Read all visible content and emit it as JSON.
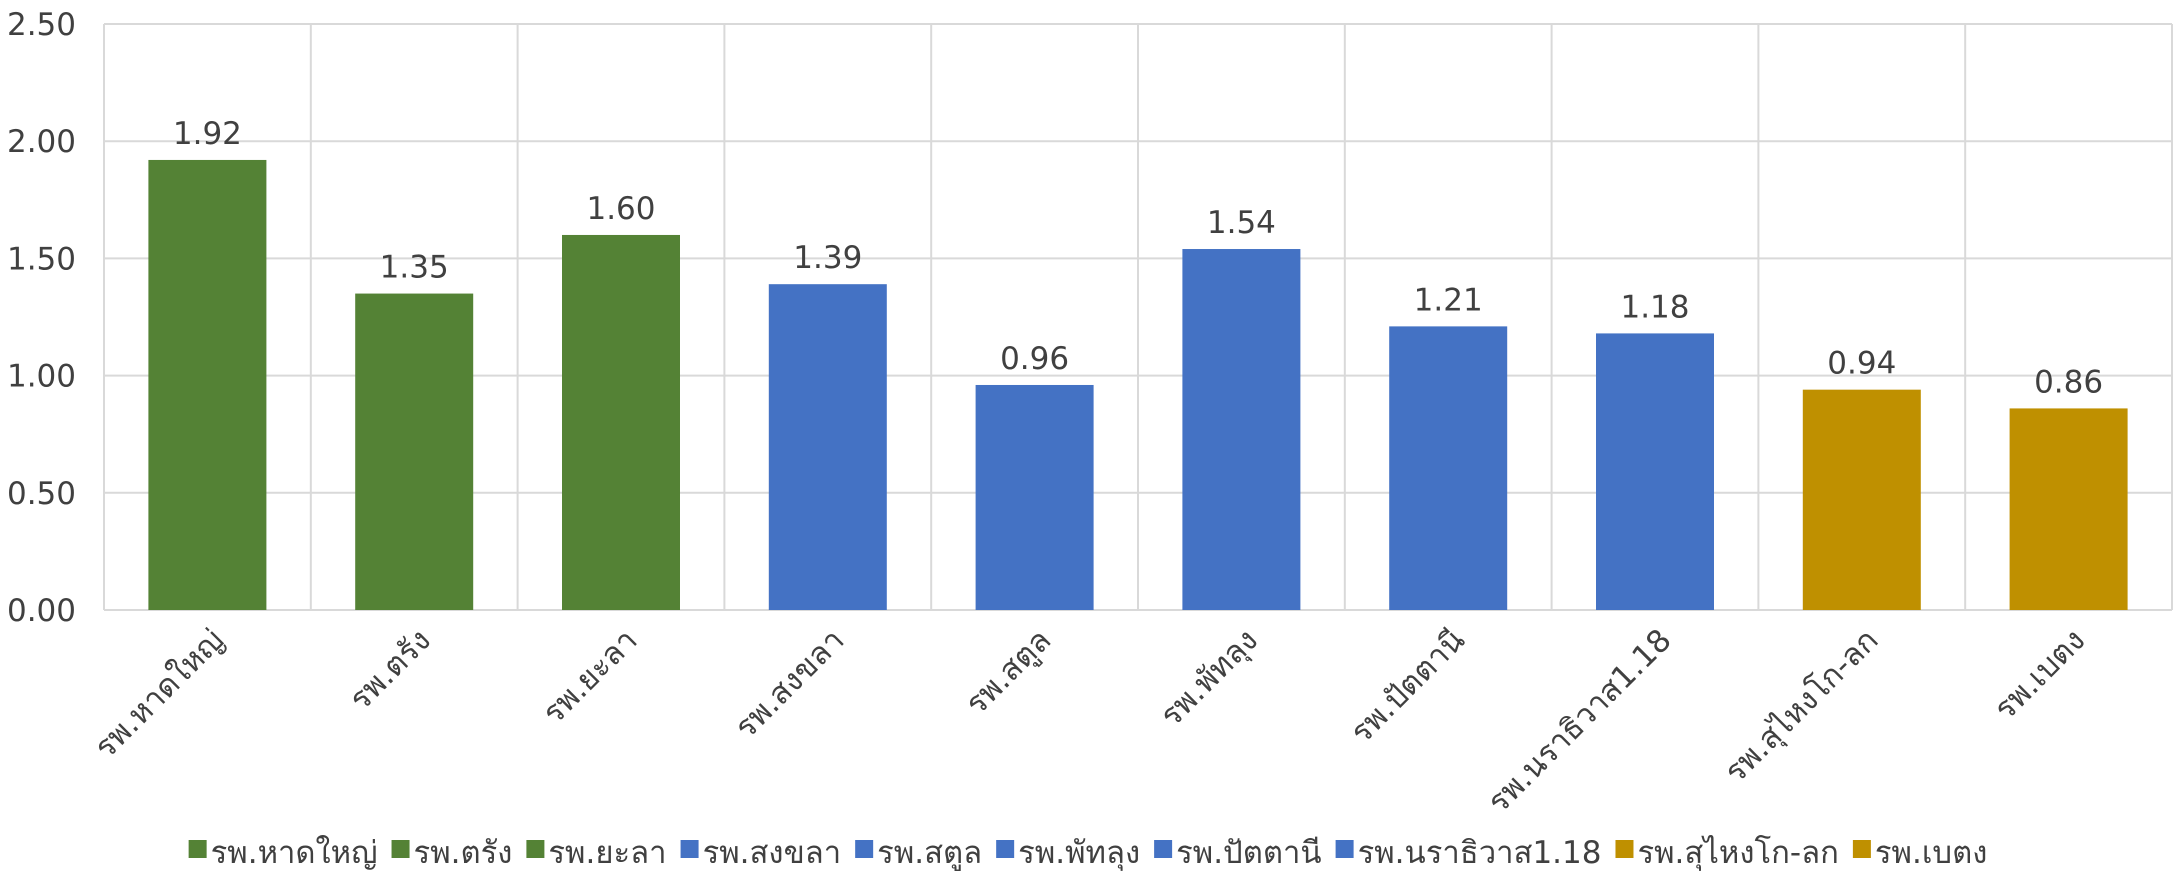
{
  "chart_data": {
    "type": "bar",
    "title": "",
    "xlabel": "",
    "ylabel": "",
    "ylim": [
      0,
      2.5
    ],
    "ytick_step": 0.5,
    "ytick_labels": [
      "0.00",
      "0.50",
      "1.00",
      "1.50",
      "2.00",
      "2.50"
    ],
    "grid": "both",
    "legend_position": "bottom",
    "categories": [
      "รพ.หาดใหญ่",
      "รพ.ตรัง",
      "รพ.ยะลา",
      "รพ.สงขลา",
      "รพ.สตูล",
      "รพ.พัทลุง",
      "รพ.ปัตตานี",
      "รพ.นราธิวาส1.18",
      "รพ.สุไหงโก-ลก",
      "รพ.เบตง"
    ],
    "values": [
      1.92,
      1.35,
      1.6,
      1.39,
      0.96,
      1.54,
      1.21,
      1.18,
      0.94,
      0.86
    ],
    "data_labels": [
      "1.92",
      "1.35",
      "1.60",
      "1.39",
      "0.96",
      "1.54",
      "1.21",
      "1.18",
      "0.94",
      "0.86"
    ],
    "colors": [
      "#548235",
      "#548235",
      "#548235",
      "#4472C4",
      "#4472C4",
      "#4472C4",
      "#4472C4",
      "#4472C4",
      "#BF9000",
      "#BF9000"
    ]
  }
}
